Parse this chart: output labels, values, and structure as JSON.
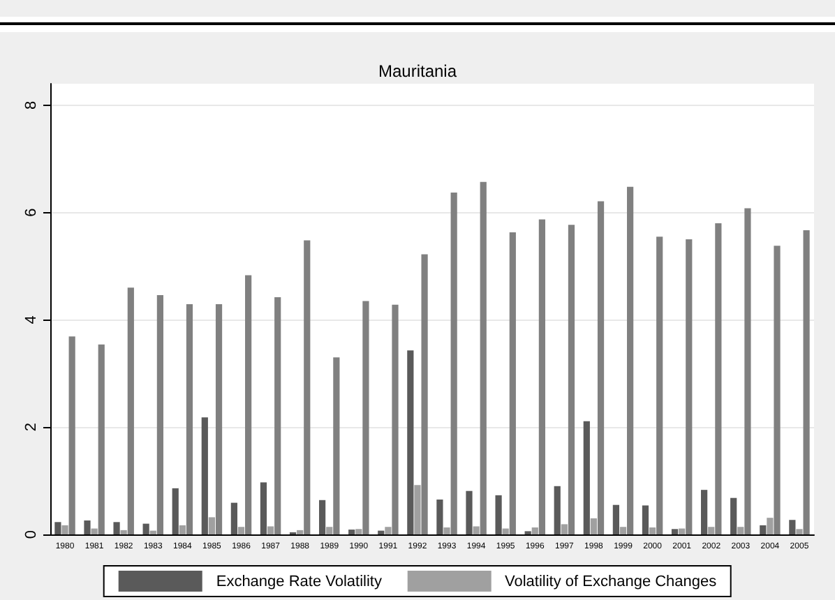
{
  "chart_data": {
    "type": "bar",
    "title": "Mauritania",
    "categories": [
      "1980",
      "1981",
      "1982",
      "1983",
      "1984",
      "1985",
      "1986",
      "1987",
      "1988",
      "1989",
      "1990",
      "1991",
      "1992",
      "1993",
      "1994",
      "1995",
      "1996",
      "1997",
      "1998",
      "1999",
      "2000",
      "2001",
      "2002",
      "2003",
      "2004",
      "2005"
    ],
    "series": [
      {
        "name": "Exchange Rate Volatility",
        "color": "#5a5a5a",
        "values": [
          0.23,
          0.26,
          0.23,
          0.2,
          0.86,
          2.18,
          0.59,
          0.97,
          0.04,
          0.64,
          0.09,
          0.07,
          3.43,
          0.65,
          0.81,
          0.73,
          0.06,
          0.9,
          2.11,
          0.55,
          0.54,
          0.1,
          0.83,
          0.68,
          0.17,
          0.27
        ]
      },
      {
        "name": "Volatility of Exchange Changes",
        "color": "#a0a0a0",
        "values": [
          0.17,
          0.11,
          0.08,
          0.07,
          0.17,
          0.32,
          0.14,
          0.15,
          0.08,
          0.14,
          0.1,
          0.14,
          0.92,
          0.13,
          0.15,
          0.11,
          0.13,
          0.19,
          0.3,
          0.14,
          0.13,
          0.11,
          0.14,
          0.14,
          0.31,
          0.1
        ]
      },
      {
        "color": "#808080",
        "values": [
          3.69,
          3.54,
          4.6,
          4.46,
          4.29,
          4.29,
          4.83,
          4.42,
          5.48,
          3.3,
          4.35,
          4.28,
          5.22,
          6.37,
          6.57,
          5.63,
          5.87,
          5.77,
          6.21,
          6.48,
          5.55,
          5.5,
          5.8,
          6.08,
          5.38,
          5.67
        ]
      }
    ],
    "ylim": [
      0,
      8.4
    ],
    "yticks": [
      0,
      2,
      4,
      6,
      8
    ],
    "grid": "y",
    "legend": "bottom"
  }
}
